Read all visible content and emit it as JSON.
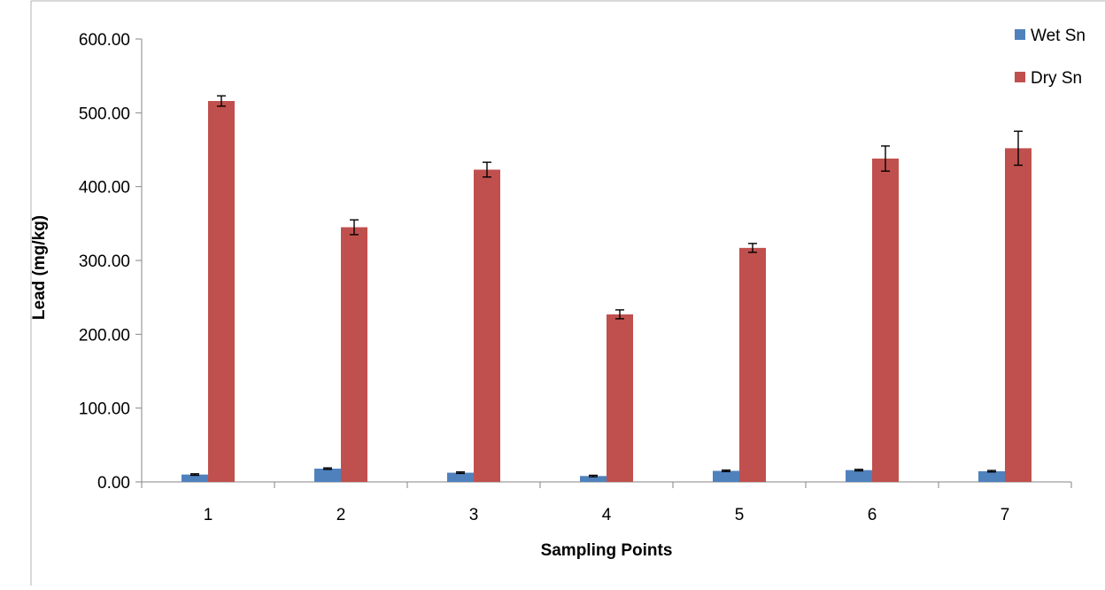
{
  "chart_data": {
    "type": "bar",
    "title": "",
    "xlabel": "Sampling Points",
    "ylabel": "Lead (mg/kg)",
    "categories": [
      "1",
      "2",
      "3",
      "4",
      "5",
      "6",
      "7"
    ],
    "ylim": [
      0,
      600
    ],
    "y_ticks": [
      "0.00",
      "100.00",
      "200.00",
      "300.00",
      "400.00",
      "500.00",
      "600.00"
    ],
    "y_tick_values": [
      0,
      100,
      200,
      300,
      400,
      500,
      600
    ],
    "grid": false,
    "legend_position": "top-right",
    "series": [
      {
        "name": "Wet Sn",
        "color": "#4f81bd",
        "values": [
          10,
          18,
          12.5,
          8,
          15,
          16,
          14.5
        ],
        "errors": [
          1,
          1,
          1,
          1,
          1,
          1,
          1
        ]
      },
      {
        "name": "Dry Sn",
        "color": "#c0504d",
        "values": [
          516,
          345,
          423,
          227,
          317,
          438,
          452
        ],
        "errors": [
          7,
          10,
          10,
          6,
          6,
          17,
          23
        ]
      }
    ]
  }
}
